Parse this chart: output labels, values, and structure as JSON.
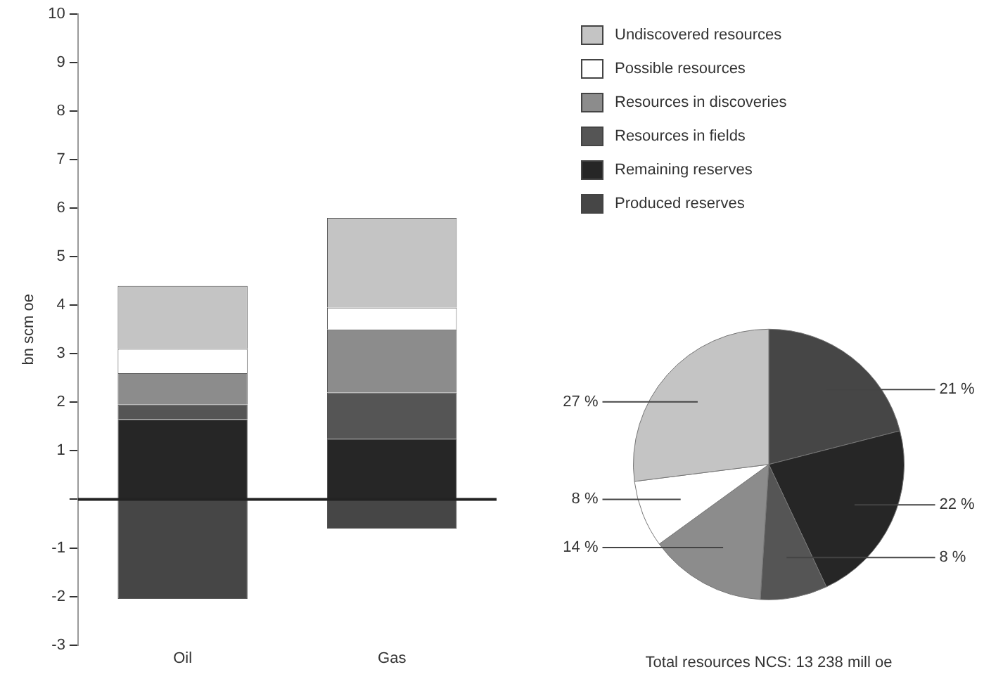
{
  "chart_data": [
    {
      "type": "bar",
      "stacked": true,
      "ylabel": "bn scm oe",
      "categories": [
        "Oil",
        "Gas"
      ],
      "ylim": [
        -3,
        10
      ],
      "yticks": [
        -3,
        -2,
        -1,
        {
          "value": 0,
          "label": null
        },
        1,
        2,
        3,
        4,
        5,
        6,
        7,
        8,
        9,
        10
      ],
      "legend": "top right",
      "series": [
        {
          "name": "Produced reserves",
          "color": "#464646",
          "values": [
            -2.05,
            -0.6
          ]
        },
        {
          "name": "Remaining reserves",
          "color": "#262626",
          "values": [
            1.65,
            1.25
          ]
        },
        {
          "name": "Resources in fields",
          "color": "#555555",
          "values": [
            0.3,
            0.95
          ]
        },
        {
          "name": "Resources in discoveries",
          "color": "#8c8c8c",
          "values": [
            0.65,
            1.3
          ]
        },
        {
          "name": "Possible resources",
          "color": "#ffffff",
          "values": [
            0.5,
            0.45
          ]
        },
        {
          "name": "Undiscovered resources",
          "color": "#c4c4c4",
          "values": [
            1.3,
            1.85
          ]
        }
      ]
    },
    {
      "type": "pie",
      "title": "Total resources NCS: 13 238 mill oe",
      "categories": [
        null,
        null,
        null,
        null,
        null,
        null
      ],
      "values": [
        21,
        22,
        8,
        14,
        8,
        27
      ],
      "value_labels": [
        "21 %",
        "22 %",
        "8 %",
        "14 %",
        "8 %",
        "27 %"
      ],
      "colors": [
        "#464646",
        "#262626",
        "#555555",
        "#8c8c8c",
        "#ffffff",
        "#c4c4c4"
      ]
    }
  ]
}
